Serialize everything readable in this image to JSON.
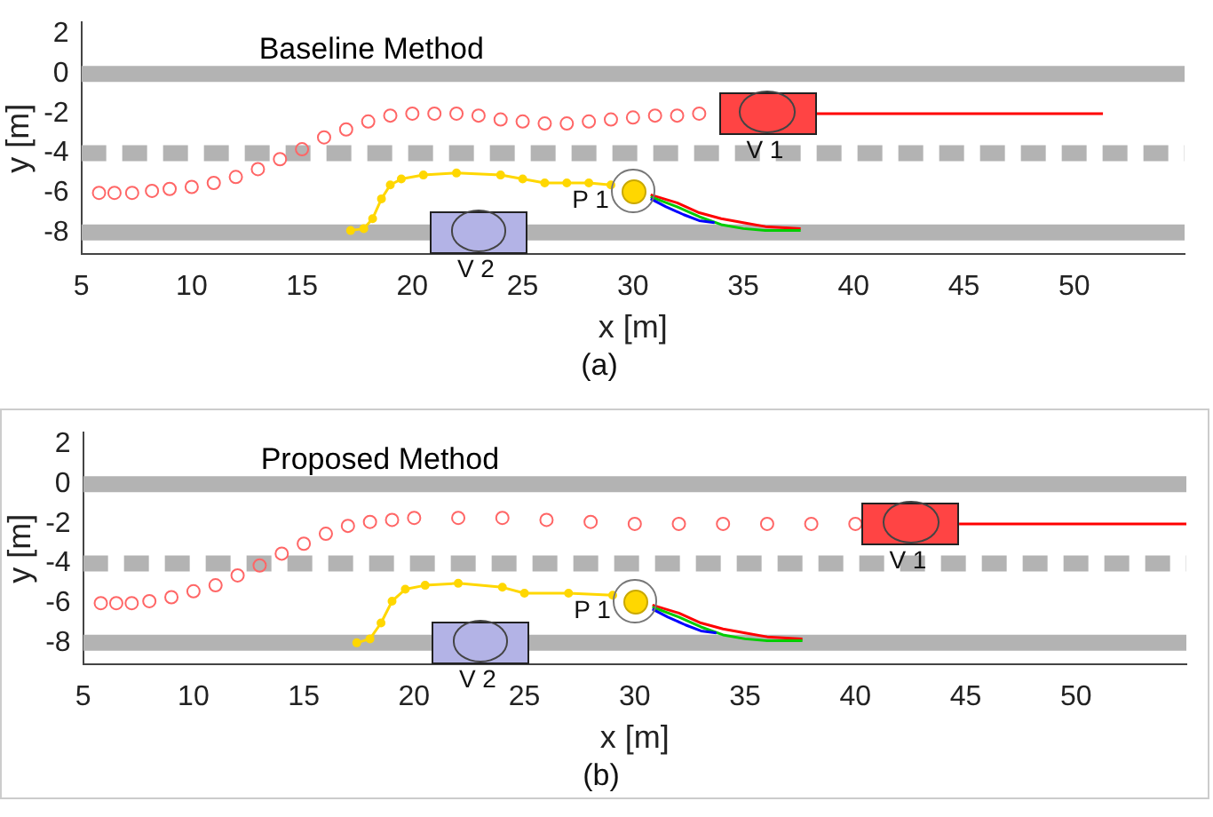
{
  "chart_data": [
    {
      "type": "line",
      "title": "Baseline Method",
      "xlabel": "x [m]",
      "ylabel": "y [m]",
      "xlim": [
        5,
        55
      ],
      "xticks": [
        5,
        10,
        15,
        20,
        25,
        30,
        35,
        40,
        45,
        50
      ],
      "ylim": [
        -9.1,
        2.6
      ],
      "yticks": [
        -8,
        -6,
        -4,
        -2,
        0,
        2
      ],
      "grid": false,
      "legend": false,
      "ref_lines": [
        {
          "axis": "y",
          "value": 0,
          "color": "#b3b3b3",
          "line_style": "solid"
        },
        {
          "axis": "y",
          "value": -4,
          "color": "#b3b3b3",
          "line_style": "dashed"
        },
        {
          "axis": "y",
          "value": -8,
          "color": "#b3b3b3",
          "line_style": "solid"
        }
      ],
      "series": [
        {
          "type": "scatter",
          "marker": "circle",
          "color": "#ff6666",
          "x": [
            5.8,
            6.5,
            7.3,
            8.2,
            9,
            10,
            11,
            12,
            13,
            14,
            15,
            16,
            17,
            18,
            19,
            20,
            21,
            22,
            23,
            24,
            25,
            26,
            27,
            28,
            29,
            30,
            31,
            32,
            33
          ],
          "values": [
            -6,
            -6,
            -6,
            -5.9,
            -5.8,
            -5.7,
            -5.5,
            -5.2,
            -4.8,
            -4.3,
            -3.8,
            -3.2,
            -2.8,
            -2.4,
            -2.1,
            -2,
            -2,
            -2,
            -2.1,
            -2.3,
            -2.4,
            -2.5,
            -2.5,
            -2.4,
            -2.3,
            -2.2,
            -2.1,
            -2.1,
            -2
          ]
        },
        {
          "color": "#ff0000",
          "x": [
            38.3,
            51.3
          ],
          "values": [
            -2,
            -2
          ]
        },
        {
          "marker": "circle",
          "color": "#ffd700",
          "x": [
            17.2,
            17.8,
            18.2,
            18.6,
            19,
            19.5,
            20.5,
            22,
            24,
            25,
            26,
            27,
            28,
            29
          ],
          "values": [
            -7.9,
            -7.8,
            -7.3,
            -6.3,
            -5.6,
            -5.3,
            -5.1,
            -5,
            -5.1,
            -5.3,
            -5.5,
            -5.5,
            -5.5,
            -5.6
          ]
        },
        {
          "color": "#ff0000",
          "x": [
            30.8,
            32,
            33,
            34,
            35,
            36,
            37.6
          ],
          "values": [
            -6.1,
            -6.5,
            -7,
            -7.3,
            -7.5,
            -7.7,
            -7.8
          ]
        },
        {
          "color": "#00cc00",
          "x": [
            30.8,
            32,
            33,
            34,
            35,
            36,
            37.6
          ],
          "values": [
            -6.2,
            -6.7,
            -7.2,
            -7.6,
            -7.8,
            -7.9,
            -7.9
          ]
        },
        {
          "color": "#0000ff",
          "x": [
            30.8,
            31.5,
            32.3,
            33,
            33.7
          ],
          "values": [
            -6.3,
            -6.7,
            -7.1,
            -7.4,
            -7.5
          ]
        }
      ],
      "annotations": [
        {
          "text": "V 1",
          "x": 36.1,
          "y": -2
        },
        {
          "text": "V 2",
          "x": 23,
          "y": -8
        },
        {
          "text": "P 1",
          "x": 30,
          "y": -5.9
        },
        "(a)"
      ]
    },
    {
      "type": "line",
      "title": "Proposed Method",
      "xlabel": "x [m]",
      "ylabel": "y [m]",
      "xlim": [
        5,
        55
      ],
      "xticks": [
        5,
        10,
        15,
        20,
        25,
        30,
        35,
        40,
        45,
        50
      ],
      "ylim": [
        -9.1,
        2.6
      ],
      "yticks": [
        -8,
        -6,
        -4,
        -2,
        0,
        2
      ],
      "grid": false,
      "legend": false,
      "ref_lines": [
        {
          "axis": "y",
          "value": 0,
          "color": "#b3b3b3",
          "line_style": "solid"
        },
        {
          "axis": "y",
          "value": -4,
          "color": "#b3b3b3",
          "line_style": "dashed"
        },
        {
          "axis": "y",
          "value": -8,
          "color": "#b3b3b3",
          "line_style": "solid"
        }
      ],
      "series": [
        {
          "type": "scatter",
          "marker": "circle",
          "color": "#ff6666",
          "x": [
            5.8,
            6.5,
            7.2,
            8,
            9,
            10,
            11,
            12,
            13,
            14,
            15,
            16,
            17,
            18,
            19,
            20,
            22,
            24,
            26,
            28,
            30,
            32,
            34,
            36,
            38,
            40
          ],
          "values": [
            -6,
            -6,
            -6,
            -5.9,
            -5.7,
            -5.4,
            -5.1,
            -4.6,
            -4.1,
            -3.5,
            -3,
            -2.5,
            -2.1,
            -1.9,
            -1.8,
            -1.7,
            -1.7,
            -1.7,
            -1.8,
            -1.9,
            -2,
            -2,
            -2,
            -2,
            -2,
            -2
          ]
        },
        {
          "color": "#ff0000",
          "x": [
            44.7,
            55
          ],
          "values": [
            -2,
            -2
          ]
        },
        {
          "marker": "circle",
          "color": "#ffd700",
          "x": [
            17.4,
            18,
            18.5,
            19,
            19.6,
            20.5,
            22,
            24,
            25,
            27,
            29
          ],
          "values": [
            -8,
            -7.8,
            -7,
            -5.9,
            -5.3,
            -5.1,
            -5,
            -5.2,
            -5.5,
            -5.5,
            -5.6
          ]
        },
        {
          "color": "#ff0000",
          "x": [
            30.8,
            32,
            33,
            34,
            35,
            36,
            37.6
          ],
          "values": [
            -6.1,
            -6.5,
            -7,
            -7.3,
            -7.5,
            -7.7,
            -7.8
          ]
        },
        {
          "color": "#00cc00",
          "x": [
            30.8,
            32,
            33,
            34,
            35,
            36,
            37.6
          ],
          "values": [
            -6.2,
            -6.7,
            -7.2,
            -7.6,
            -7.8,
            -7.9,
            -7.9
          ]
        },
        {
          "color": "#0000ff",
          "x": [
            30.8,
            31.5,
            32.3,
            33,
            33.7
          ],
          "values": [
            -6.3,
            -6.7,
            -7.1,
            -7.4,
            -7.5
          ]
        }
      ],
      "annotations": [
        {
          "text": "V 1",
          "x": 42.5,
          "y": -2
        },
        {
          "text": "V 2",
          "x": 23,
          "y": -8
        },
        {
          "text": "P 1",
          "x": 30,
          "y": -5.9
        },
        "(b)"
      ]
    }
  ]
}
